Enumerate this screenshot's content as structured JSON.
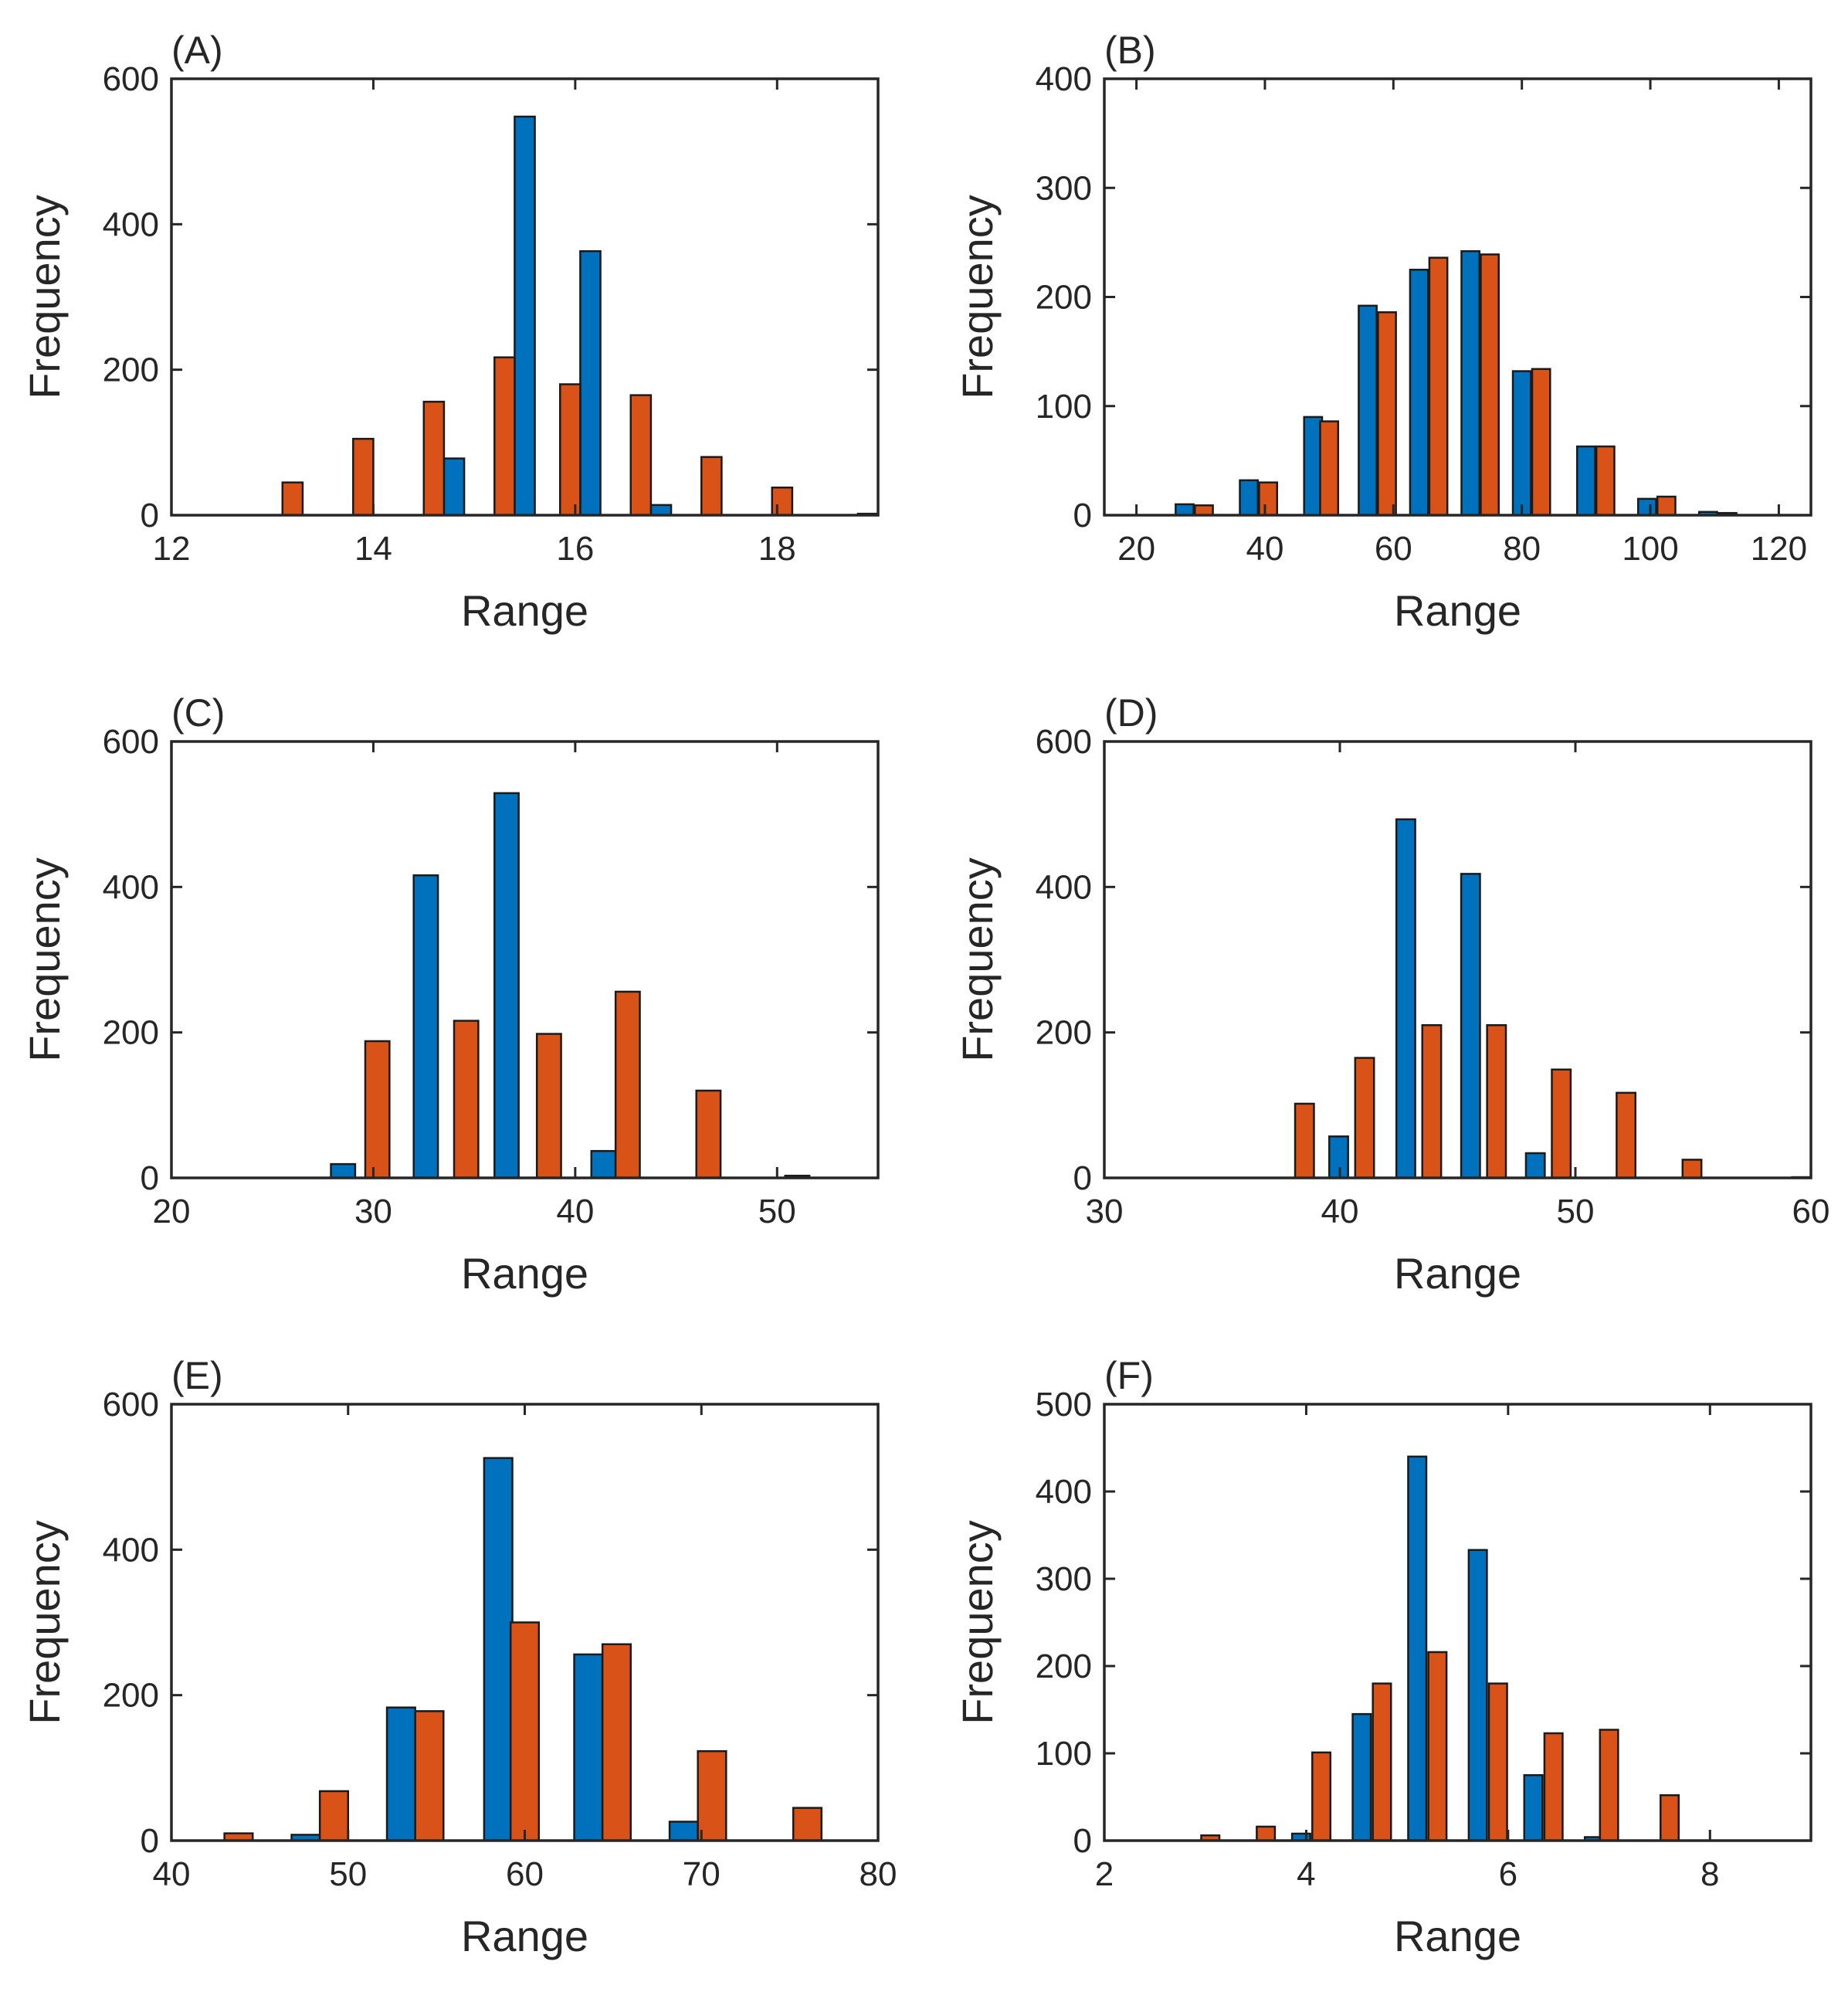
{
  "chart_data": [
    {
      "type": "bar",
      "title": "(A)",
      "xlabel": "Range",
      "ylabel": "Frequency",
      "xlim": [
        12,
        19
      ],
      "ylim": [
        0,
        600
      ],
      "xticks": [
        12,
        14,
        16,
        18
      ],
      "yticks": [
        0,
        200,
        400,
        600
      ],
      "bar_width": 0.2,
      "series": [
        {
          "color": "#0072BD",
          "x": [
            12.8,
            13.45,
            14.15,
            14.8,
            15.5,
            16.15,
            16.85,
            17.55,
            18.2,
            18.9
          ],
          "values": [
            0,
            0,
            0,
            78,
            548,
            363,
            14,
            0,
            0,
            2
          ]
        },
        {
          "color": "#D95319",
          "x": [
            13.2,
            13.9,
            14.6,
            15.3,
            15.95,
            16.65,
            17.35,
            18.05,
            18.75
          ],
          "values": [
            45,
            105,
            156,
            217,
            180,
            165,
            80,
            38,
            0
          ]
        }
      ]
    },
    {
      "type": "bar",
      "title": "(B)",
      "xlabel": "Range",
      "ylabel": "Frequency",
      "xlim": [
        15,
        125
      ],
      "ylim": [
        0,
        400
      ],
      "xticks": [
        20,
        40,
        60,
        80,
        100,
        120
      ],
      "yticks": [
        0,
        100,
        200,
        300,
        400
      ],
      "bar_width": 2.8,
      "series": [
        {
          "color": "#0072BD",
          "x": [
            27.5,
            37.5,
            47.5,
            56,
            64,
            72,
            80,
            90,
            99.5,
            109,
            118
          ],
          "values": [
            10,
            32,
            90,
            192,
            225,
            242,
            132,
            63,
            15,
            3,
            0
          ]
        },
        {
          "color": "#D95319",
          "x": [
            30.5,
            40.5,
            50,
            59,
            67,
            75,
            83,
            93,
            102.5,
            112,
            121
          ],
          "values": [
            9,
            30,
            86,
            186,
            236,
            239,
            134,
            63,
            17,
            2,
            0
          ]
        }
      ]
    },
    {
      "type": "bar",
      "title": "(C)",
      "xlabel": "Range",
      "ylabel": "Frequency",
      "xlim": [
        20,
        55
      ],
      "ylim": [
        0,
        600
      ],
      "xticks": [
        20,
        30,
        40,
        50
      ],
      "yticks": [
        0,
        200,
        400,
        600
      ],
      "bar_width": 1.2,
      "series": [
        {
          "color": "#0072BD",
          "x": [
            25,
            28.5,
            32.6,
            36.6,
            41.4,
            46,
            51
          ],
          "values": [
            0,
            19,
            416,
            529,
            37,
            0,
            3
          ]
        },
        {
          "color": "#D95319",
          "x": [
            30.2,
            34.6,
            38.7,
            42.6,
            46.6
          ],
          "values": [
            188,
            216,
            198,
            256,
            120
          ]
        }
      ]
    },
    {
      "type": "bar",
      "title": "(D)",
      "xlabel": "Range",
      "ylabel": "Frequency",
      "xlim": [
        30,
        60
      ],
      "ylim": [
        0,
        600
      ],
      "xticks": [
        30,
        40,
        50,
        60
      ],
      "yticks": [
        0,
        200,
        400,
        600
      ],
      "bar_width": 0.8,
      "series": [
        {
          "color": "#0072BD",
          "x": [
            36.5,
            39.95,
            42.8,
            45.55,
            48.3,
            51,
            53.8,
            59.6
          ],
          "values": [
            0,
            57,
            493,
            418,
            34,
            0,
            0,
            1
          ]
        },
        {
          "color": "#D95319",
          "x": [
            38.5,
            41.05,
            43.9,
            46.65,
            49.4,
            52.15,
            54.95
          ],
          "values": [
            102,
            165,
            210,
            210,
            149,
            117,
            25
          ]
        }
      ]
    },
    {
      "type": "bar",
      "title": "(E)",
      "xlabel": "Range",
      "ylabel": "Frequency",
      "xlim": [
        40,
        80
      ],
      "ylim": [
        0,
        600
      ],
      "xticks": [
        40,
        50,
        60,
        70,
        80
      ],
      "yticks": [
        0,
        200,
        400,
        600
      ],
      "bar_width": 1.6,
      "series": [
        {
          "color": "#0072BD",
          "x": [
            42.2,
            47.6,
            53,
            58.5,
            63.6,
            69,
            74.4
          ],
          "values": [
            0,
            8,
            183,
            526,
            256,
            26,
            0
          ]
        },
        {
          "color": "#D95319",
          "x": [
            43.8,
            49.2,
            54.6,
            60,
            65.2,
            70.6,
            76
          ],
          "values": [
            10,
            68,
            178,
            300,
            270,
            123,
            45
          ]
        }
      ]
    },
    {
      "type": "bar",
      "title": "(F)",
      "xlabel": "Range",
      "ylabel": "Frequency",
      "xlim": [
        2,
        9
      ],
      "ylim": [
        0,
        500
      ],
      "xticks": [
        2,
        4,
        6,
        8
      ],
      "yticks": [
        0,
        100,
        200,
        300,
        400,
        500
      ],
      "bar_width": 0.18,
      "series": [
        {
          "color": "#0072BD",
          "x": [
            2.75,
            3.35,
            3.95,
            4.55,
            5.1,
            5.7,
            6.25,
            6.85,
            7.45
          ],
          "values": [
            0,
            0,
            8,
            145,
            440,
            333,
            75,
            4,
            0
          ]
        },
        {
          "color": "#D95319",
          "x": [
            3.05,
            3.6,
            4.15,
            4.75,
            5.3,
            5.9,
            6.45,
            7.0,
            7.6
          ],
          "values": [
            6,
            16,
            101,
            180,
            216,
            180,
            123,
            127,
            52
          ]
        }
      ]
    }
  ]
}
